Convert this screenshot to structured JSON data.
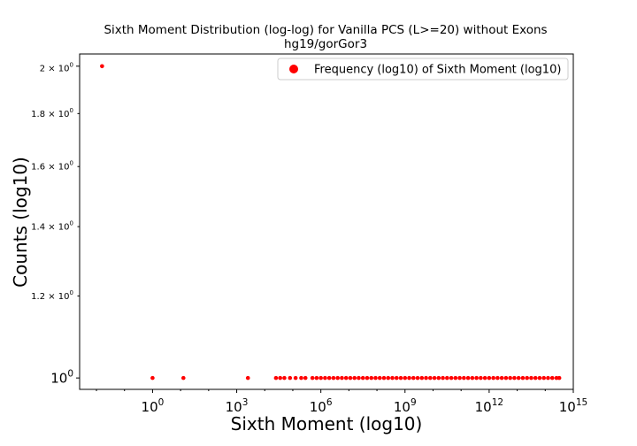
{
  "chart_data": {
    "type": "scatter",
    "title": "Sixth Moment Distribution (log-log) for Vanilla PCS (L>=20) without Exons",
    "subtitle": "hg19/gorGor3",
    "xlabel": "Sixth Moment (log10)",
    "ylabel": "Counts (log10)",
    "xscale": "log",
    "yscale": "log",
    "xlim_exponent": [
      -2.6,
      15.0
    ],
    "ylim": [
      0.975,
      2.055
    ],
    "x_ticks": [
      {
        "exponent": 0,
        "base": "10",
        "sup": "0"
      },
      {
        "exponent": 3,
        "base": "10",
        "sup": "3"
      },
      {
        "exponent": 6,
        "base": "10",
        "sup": "6"
      },
      {
        "exponent": 9,
        "base": "10",
        "sup": "9"
      },
      {
        "exponent": 12,
        "base": "10",
        "sup": "12"
      },
      {
        "exponent": 15,
        "base": "10",
        "sup": "15"
      }
    ],
    "y_ticks": [
      {
        "value": 1.0,
        "label": "10",
        "sup": "0",
        "prefix": "",
        "major": true
      },
      {
        "value": 1.2,
        "label": "10",
        "sup": "0",
        "prefix": "1.2 × ",
        "major": false
      },
      {
        "value": 1.4,
        "label": "10",
        "sup": "0",
        "prefix": "1.4 × ",
        "major": false
      },
      {
        "value": 1.6,
        "label": "10",
        "sup": "0",
        "prefix": "1.6 × ",
        "major": false
      },
      {
        "value": 1.8,
        "label": "10",
        "sup": "0",
        "prefix": "1.8 × ",
        "major": false
      },
      {
        "value": 2.0,
        "label": "10",
        "sup": "0",
        "prefix": "2 × ",
        "major": true
      }
    ],
    "grid": false,
    "legend": {
      "position": "top-right",
      "entries": [
        "Frequency (log10) of Sixth Moment (log10)"
      ]
    },
    "marker_color": "#ff0000",
    "series": [
      {
        "name": "Frequency (log10) of Sixth Moment (log10)",
        "points": [
          {
            "x_exp": -1.8,
            "y": 2
          },
          {
            "x_exp": 0.0,
            "y": 1
          },
          {
            "x_exp": 1.1,
            "y": 1
          },
          {
            "x_exp": 3.4,
            "y": 1
          },
          {
            "x_exp": 4.4,
            "y": 1
          },
          {
            "x_exp": 4.55,
            "y": 1
          },
          {
            "x_exp": 4.7,
            "y": 1
          },
          {
            "x_exp": 4.9,
            "y": 1
          },
          {
            "x_exp": 5.1,
            "y": 1
          },
          {
            "x_exp": 5.3,
            "y": 1
          },
          {
            "x_exp": 5.45,
            "y": 1
          },
          {
            "x_exp": 5.7,
            "y": 1
          },
          {
            "x_exp": 5.85,
            "y": 1
          },
          {
            "x_exp": 6.0,
            "y": 1
          },
          {
            "x_exp": 6.15,
            "y": 1
          },
          {
            "x_exp": 6.3,
            "y": 1
          },
          {
            "x_exp": 6.45,
            "y": 1
          },
          {
            "x_exp": 6.6,
            "y": 1
          },
          {
            "x_exp": 6.75,
            "y": 1
          },
          {
            "x_exp": 6.9,
            "y": 1
          },
          {
            "x_exp": 7.05,
            "y": 1
          },
          {
            "x_exp": 7.2,
            "y": 1
          },
          {
            "x_exp": 7.35,
            "y": 1
          },
          {
            "x_exp": 7.5,
            "y": 1
          },
          {
            "x_exp": 7.65,
            "y": 1
          },
          {
            "x_exp": 7.8,
            "y": 1
          },
          {
            "x_exp": 7.95,
            "y": 1
          },
          {
            "x_exp": 8.1,
            "y": 1
          },
          {
            "x_exp": 8.25,
            "y": 1
          },
          {
            "x_exp": 8.4,
            "y": 1
          },
          {
            "x_exp": 8.55,
            "y": 1
          },
          {
            "x_exp": 8.7,
            "y": 1
          },
          {
            "x_exp": 8.85,
            "y": 1
          },
          {
            "x_exp": 9.0,
            "y": 1
          },
          {
            "x_exp": 9.15,
            "y": 1
          },
          {
            "x_exp": 9.3,
            "y": 1
          },
          {
            "x_exp": 9.45,
            "y": 1
          },
          {
            "x_exp": 9.6,
            "y": 1
          },
          {
            "x_exp": 9.75,
            "y": 1
          },
          {
            "x_exp": 9.9,
            "y": 1
          },
          {
            "x_exp": 10.05,
            "y": 1
          },
          {
            "x_exp": 10.2,
            "y": 1
          },
          {
            "x_exp": 10.35,
            "y": 1
          },
          {
            "x_exp": 10.5,
            "y": 1
          },
          {
            "x_exp": 10.65,
            "y": 1
          },
          {
            "x_exp": 10.8,
            "y": 1
          },
          {
            "x_exp": 10.95,
            "y": 1
          },
          {
            "x_exp": 11.1,
            "y": 1
          },
          {
            "x_exp": 11.25,
            "y": 1
          },
          {
            "x_exp": 11.4,
            "y": 1
          },
          {
            "x_exp": 11.55,
            "y": 1
          },
          {
            "x_exp": 11.7,
            "y": 1
          },
          {
            "x_exp": 11.85,
            "y": 1
          },
          {
            "x_exp": 12.0,
            "y": 1
          },
          {
            "x_exp": 12.15,
            "y": 1
          },
          {
            "x_exp": 12.3,
            "y": 1
          },
          {
            "x_exp": 12.45,
            "y": 1
          },
          {
            "x_exp": 12.6,
            "y": 1
          },
          {
            "x_exp": 12.75,
            "y": 1
          },
          {
            "x_exp": 12.9,
            "y": 1
          },
          {
            "x_exp": 13.05,
            "y": 1
          },
          {
            "x_exp": 13.2,
            "y": 1
          },
          {
            "x_exp": 13.35,
            "y": 1
          },
          {
            "x_exp": 13.5,
            "y": 1
          },
          {
            "x_exp": 13.65,
            "y": 1
          },
          {
            "x_exp": 13.8,
            "y": 1
          },
          {
            "x_exp": 13.95,
            "y": 1
          },
          {
            "x_exp": 14.1,
            "y": 1
          },
          {
            "x_exp": 14.25,
            "y": 1
          },
          {
            "x_exp": 14.4,
            "y": 1
          },
          {
            "x_exp": 14.5,
            "y": 1
          }
        ]
      }
    ]
  }
}
